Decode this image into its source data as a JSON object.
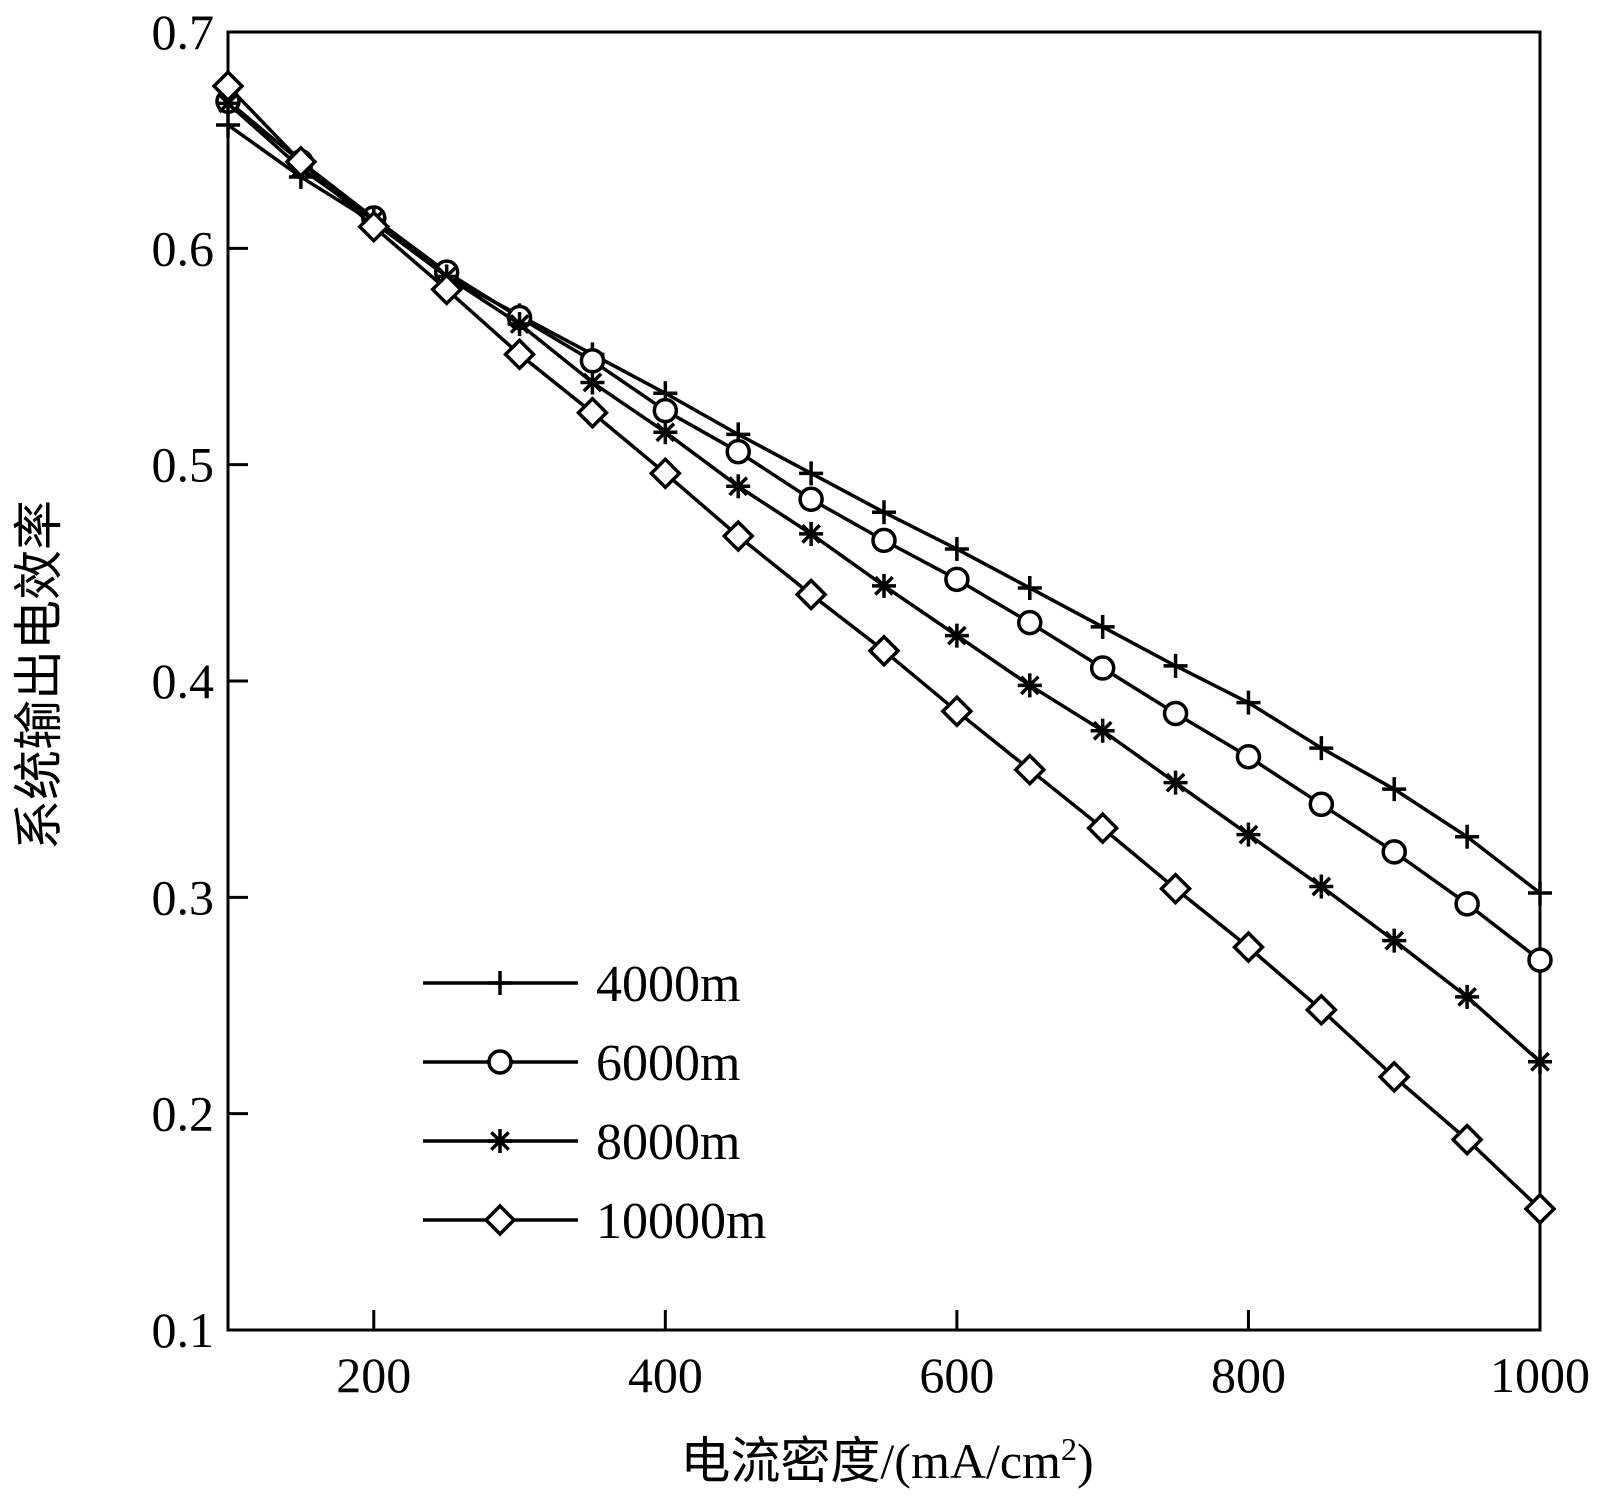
{
  "chart_data": {
    "type": "line",
    "title": "",
    "xlabel": "电流密度/(mA/cm",
    "xlabel_sup": "2",
    "xlabel_tail": ")",
    "ylabel": "系统输出电效率",
    "xlim": [
      100,
      1000
    ],
    "ylim": [
      0.1,
      0.7
    ],
    "xticks": [
      200,
      400,
      600,
      800,
      1000
    ],
    "xtick_labels": [
      "200",
      "400",
      "600",
      "800",
      "1000"
    ],
    "yticks": [
      0.1,
      0.2,
      0.3,
      0.4,
      0.5,
      0.6,
      0.7
    ],
    "ytick_labels": [
      "0.1",
      "0.2",
      "0.3",
      "0.4",
      "0.5",
      "0.6",
      "0.7"
    ],
    "grid": false,
    "legend_position": "bottom-left",
    "x": [
      100,
      150,
      200,
      250,
      300,
      350,
      400,
      450,
      500,
      550,
      600,
      650,
      700,
      750,
      800,
      850,
      900,
      950,
      1000
    ],
    "series": [
      {
        "name": "4000m",
        "marker": "plus",
        "values": [
          0.657,
          0.633,
          0.612,
          0.587,
          0.569,
          0.551,
          0.533,
          0.514,
          0.496,
          0.478,
          0.461,
          0.443,
          0.425,
          0.407,
          0.39,
          0.369,
          0.35,
          0.328,
          0.302
        ]
      },
      {
        "name": "6000m",
        "marker": "circle",
        "values": [
          0.668,
          0.64,
          0.614,
          0.589,
          0.568,
          0.548,
          0.525,
          0.506,
          0.484,
          0.465,
          0.447,
          0.427,
          0.406,
          0.385,
          0.365,
          0.343,
          0.321,
          0.297,
          0.271
        ]
      },
      {
        "name": "8000m",
        "marker": "asterisk",
        "values": [
          0.667,
          0.637,
          0.613,
          0.587,
          0.565,
          0.538,
          0.515,
          0.49,
          0.468,
          0.444,
          0.421,
          0.398,
          0.377,
          0.353,
          0.329,
          0.305,
          0.28,
          0.254,
          0.224
        ]
      },
      {
        "name": "10000m",
        "marker": "diamond",
        "values": [
          0.675,
          0.64,
          0.61,
          0.581,
          0.551,
          0.524,
          0.496,
          0.467,
          0.44,
          0.414,
          0.386,
          0.359,
          0.332,
          0.304,
          0.277,
          0.248,
          0.217,
          0.188,
          0.156
        ]
      }
    ]
  }
}
